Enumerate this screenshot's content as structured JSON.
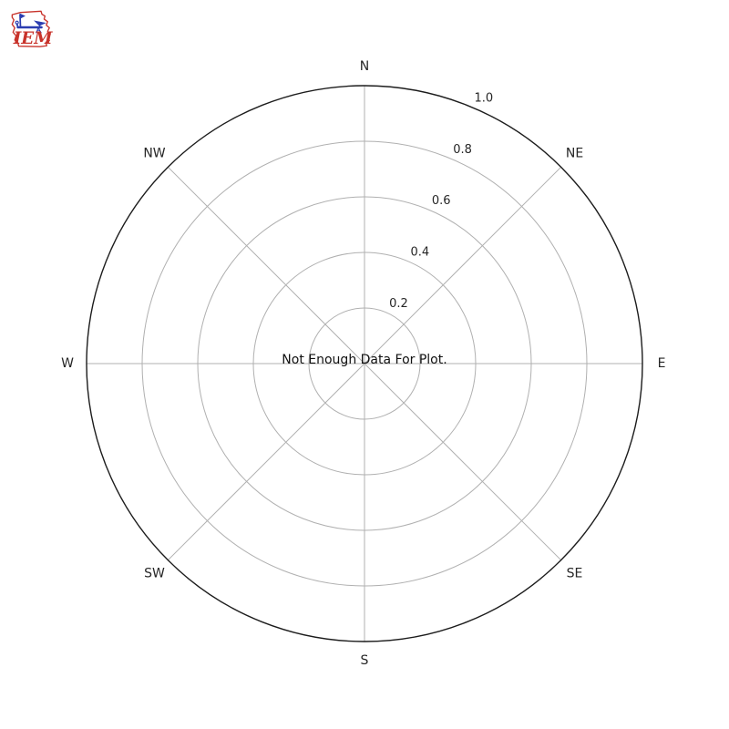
{
  "logo": {
    "text": "IEM",
    "outline_color": "#c8332b",
    "text_color": "#c8332b",
    "instrument_color": "#2b3db0"
  },
  "chart_data": {
    "type": "polar-windrose",
    "no_data": true,
    "message": "Not Enough Data For Plot.",
    "series": [],
    "directions": [
      "N",
      "NE",
      "E",
      "SE",
      "S",
      "SW",
      "W",
      "NW"
    ],
    "radial_ticks": [
      0.2,
      0.4,
      0.6,
      0.8,
      1.0
    ],
    "radial_tick_labels": [
      "0.2",
      "0.4",
      "0.6",
      "0.8",
      "1.0"
    ],
    "rlim": [
      0,
      1
    ],
    "rlabel_angle_deg": 67.5,
    "grid": true,
    "grid_color": "#b0b0b0",
    "outline_color": "#1c1c1c",
    "text_color": "#262626",
    "background": "#ffffff"
  }
}
